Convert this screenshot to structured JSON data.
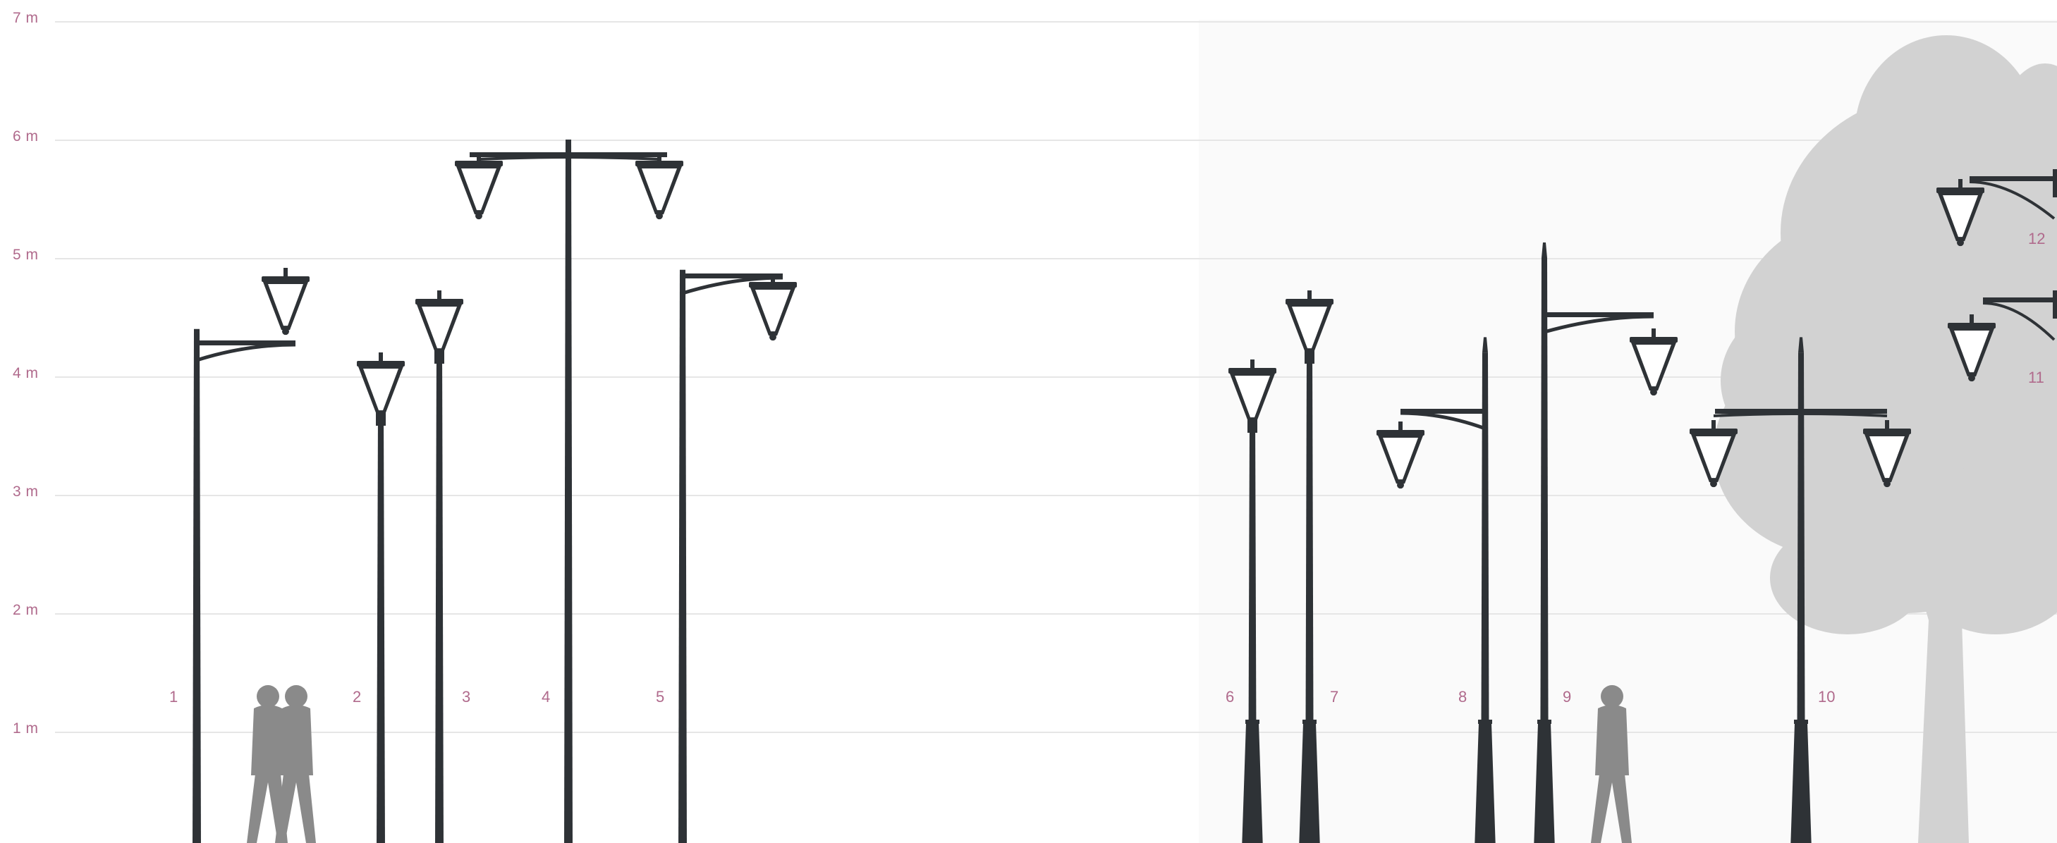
{
  "scale": {
    "unit": "m",
    "levels": [
      {
        "value": 7,
        "label": "7 m"
      },
      {
        "value": 6,
        "label": "6 m"
      },
      {
        "value": 5,
        "label": "5 m"
      },
      {
        "value": 4,
        "label": "4 m"
      },
      {
        "value": 3,
        "label": "3 m"
      },
      {
        "value": 2,
        "label": "2 m"
      },
      {
        "value": 1,
        "label": "1 m"
      }
    ]
  },
  "luminaires": [
    {
      "number": "1",
      "height_m": 4.4,
      "arms": 1,
      "style": "side-arm"
    },
    {
      "number": "2",
      "height_m": 3.9,
      "arms": 0,
      "style": "post-top"
    },
    {
      "number": "3",
      "height_m": 4.4,
      "arms": 0,
      "style": "post-top"
    },
    {
      "number": "4",
      "height_m": 6.0,
      "arms": 2,
      "style": "double-arm"
    },
    {
      "number": "5",
      "height_m": 4.9,
      "arms": 1,
      "style": "side-arm"
    },
    {
      "number": "6",
      "height_m": 3.9,
      "arms": 0,
      "style": "post-top on base"
    },
    {
      "number": "7",
      "height_m": 4.4,
      "arms": 0,
      "style": "post-top on base"
    },
    {
      "number": "8",
      "height_m": 4.2,
      "arms": 1,
      "style": "side-arm on base"
    },
    {
      "number": "9",
      "height_m": 5.0,
      "arms": 1,
      "style": "side-arm on base"
    },
    {
      "number": "10",
      "height_m": 4.2,
      "arms": 2,
      "style": "double-arm on base"
    },
    {
      "number": "11",
      "arms": 1,
      "style": "wall bracket"
    },
    {
      "number": "12",
      "arms": 1,
      "style": "wall bracket"
    }
  ],
  "colors": {
    "grid": "#e6e6e6",
    "label": "#b06a8c",
    "pole": "#2e3236",
    "silhouette": "#8a8a8a",
    "tree": "#d2d2d2",
    "panel": "#fafafa"
  }
}
